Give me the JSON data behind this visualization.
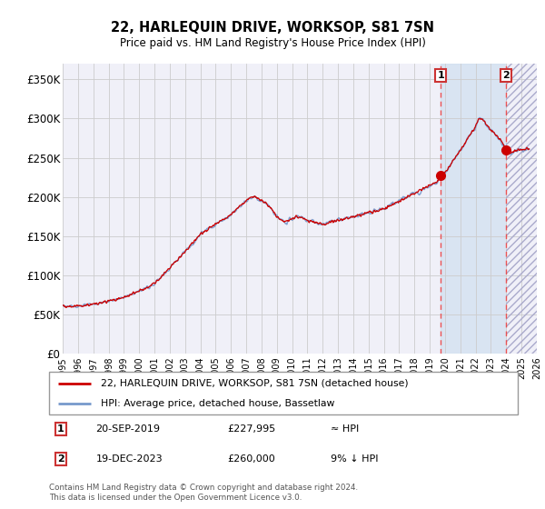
{
  "title": "22, HARLEQUIN DRIVE, WORKSOP, S81 7SN",
  "subtitle": "Price paid vs. HM Land Registry's House Price Index (HPI)",
  "ylim": [
    0,
    370000
  ],
  "yticks": [
    0,
    50000,
    100000,
    150000,
    200000,
    250000,
    300000,
    350000
  ],
  "ytick_labels": [
    "£0",
    "£50K",
    "£100K",
    "£150K",
    "£200K",
    "£250K",
    "£300K",
    "£350K"
  ],
  "line_color": "#cc0000",
  "hpi_color": "#7799cc",
  "grid_color": "#cccccc",
  "background_color": "#ffffff",
  "plot_bg_color": "#f0f0f8",
  "blue_shade_color": "#d0e0f0",
  "hatch_color": "#bbbbcc",
  "marker1_date": 2019.72,
  "marker1_value": 227995,
  "marker1_label": "1",
  "marker2_date": 2023.96,
  "marker2_value": 260000,
  "marker2_label": "2",
  "vline_color": "#ee4444",
  "annotation_box_color": "#cc3333",
  "legend_line1": "22, HARLEQUIN DRIVE, WORKSOP, S81 7SN (detached house)",
  "legend_line2": "HPI: Average price, detached house, Bassetlaw",
  "table_row1": [
    "1",
    "20-SEP-2019",
    "£227,995",
    "≈ HPI"
  ],
  "table_row2": [
    "2",
    "19-DEC-2023",
    "£260,000",
    "9% ↓ HPI"
  ],
  "footer": "Contains HM Land Registry data © Crown copyright and database right 2024.\nThis data is licensed under the Open Government Licence v3.0.",
  "xmin": 1995,
  "xmax": 2026
}
